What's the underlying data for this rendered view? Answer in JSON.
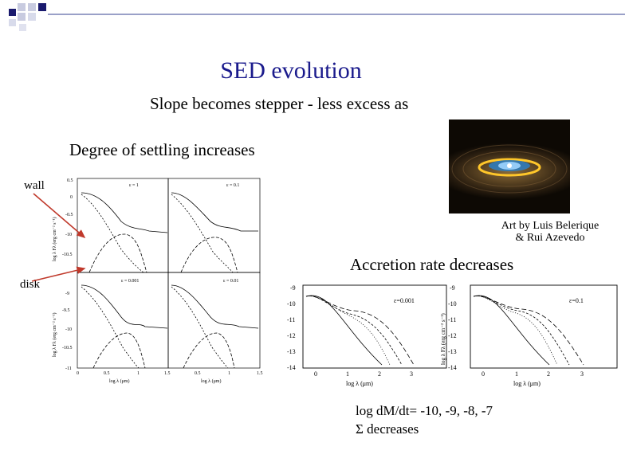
{
  "slide": {
    "title": "SED evolution",
    "line1": "Slope becomes stepper - less excess as",
    "line2": "Degree of settling increases",
    "label_wall": "wall",
    "label_disk": "disk",
    "credit_line1": "Art by Luis Belerique",
    "credit_line2": "& Rui Azevedo",
    "accretion_heading": "Accretion rate decreases",
    "rates_line": "log dM/dt= -10, -9, -8, -7",
    "sigma_line": "Σ decreases",
    "arrow_color": "#c0392b",
    "accent": "#1a1a8c"
  },
  "left_plot": {
    "ylabel_top": "log λ Fλ (erg cm⁻² s⁻¹)",
    "ylabel_bottom": "log λ Fλ (erg cm⁻² s⁻¹)",
    "xlabel": "log λ (μm)",
    "yticks_top": [
      "0.5",
      "0",
      "-0.5",
      "-10",
      "-10.5"
    ],
    "yticks_bottom": [
      "-9",
      "-9.5",
      "-10",
      "-10.5",
      "-11"
    ],
    "xticks": [
      "0",
      "0.5",
      "1",
      "1.5"
    ],
    "panel_labels": [
      "ε = 1",
      "ε = 0.1",
      "ε = 0.001",
      "ε = 0.01"
    ]
  },
  "right_plot": {
    "ylabel": "log λ Fλ (erg cm⁻² s⁻¹)",
    "xlabel": "log λ (μm)",
    "yticks": [
      "-9",
      "-10",
      "-11",
      "-12",
      "-13",
      "-14"
    ],
    "xticks": [
      "0",
      "1",
      "2",
      "3"
    ],
    "panel_labels": [
      "ε=0.001",
      "ε=0.1"
    ]
  }
}
